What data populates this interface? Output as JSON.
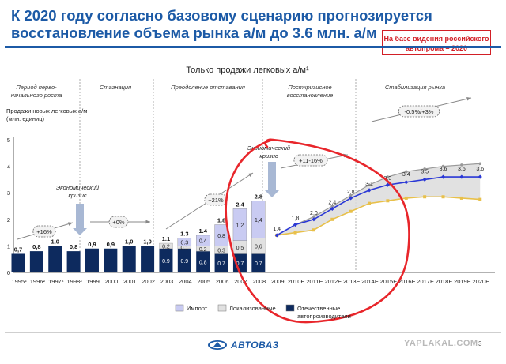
{
  "header": {
    "title_line1": "К 2020 году согласно базовому сценарию прогнозируется",
    "title_line2": "восстановление объема рынка а/м до 3.6 млн. а/м",
    "badge_line1": "На базе  видения российского",
    "badge_line2": "автопрома – 2020"
  },
  "colors": {
    "title_blue": "#1c5aa6",
    "domestic": "#0d2a5e",
    "localized": "#e1e1e1",
    "import": "#c9cbf2",
    "forecast_base": "#2a38d6",
    "forecast_upper": "#999999",
    "forecast_lower": "#e8c04a",
    "annotation_red": "#e8262b"
  },
  "chart_data": {
    "type": "bar",
    "title": "Только продажи легковых а/м¹",
    "ylabel_line1": "Продажи новых легковых а/м",
    "ylabel_line2": "(млн. единиц)",
    "ylim": [
      0,
      5
    ],
    "yticks": [
      "0",
      "1",
      "2",
      "3",
      "4",
      "5"
    ],
    "categories": [
      "1995²",
      "1996²",
      "1997²",
      "1998²",
      "1999",
      "2000",
      "2001",
      "2002",
      "2003",
      "2004",
      "2005",
      "2006",
      "2007",
      "2008",
      "2009",
      "2010E",
      "2011E",
      "2012E",
      "2013E",
      "2014E",
      "2015E",
      "2016E",
      "2017E",
      "2018E",
      "2019E",
      "2020E"
    ],
    "bars": [
      {
        "total": "0,7",
        "domestic": 0.7
      },
      {
        "total": "0,8",
        "domestic": 0.8
      },
      {
        "total": "1,0",
        "domestic": 1.0
      },
      {
        "total": "0,8",
        "domestic": 0.8
      },
      {
        "total": "0,9",
        "domestic": 0.9
      },
      {
        "total": "0,9",
        "domestic": 0.9
      },
      {
        "total": "1,0",
        "domestic": 1.0
      },
      {
        "total": "1,0",
        "domestic": 1.0
      },
      {
        "total": "1.1",
        "domestic": 0.9,
        "localized": 0.2,
        "d_label": "0.9",
        "l_label": "0.2"
      },
      {
        "total": "1.3",
        "domestic": 0.9,
        "localized": 0.1,
        "import": 0.3,
        "d_label": "0.9",
        "l_label": "0.1",
        "i_label": "0.3"
      },
      {
        "total": "1.4",
        "domestic": 0.8,
        "localized": 0.2,
        "import": 0.4,
        "d_label": "0.8",
        "l_label": "0.2",
        "i_label": "0.4"
      },
      {
        "total": "1.8",
        "domestic": 0.7,
        "localized": 0.3,
        "import": 0.8,
        "d_label": "0.7",
        "l_label": "0.3",
        "i_label": "0.8"
      },
      {
        "total": "2.4",
        "domestic": 0.7,
        "localized": 0.5,
        "import": 1.2,
        "d_label": "0.7",
        "l_label": "0,5",
        "i_label": "1,2"
      },
      {
        "total": "2.8",
        "domestic": 0.7,
        "localized": 0.6,
        "import": 1.4,
        "d_label": "0.7",
        "l_label": "0,6",
        "i_label": "1,4"
      }
    ],
    "forecast": {
      "x": [
        "2009",
        "2010E",
        "2011E",
        "2012E",
        "2013E",
        "2014E",
        "2015E",
        "2016E",
        "2017E",
        "2018E",
        "2019E",
        "2020E"
      ],
      "base": [
        1.4,
        1.8,
        2.0,
        2.4,
        2.8,
        3.1,
        3.3,
        3.4,
        3.5,
        3.6,
        3.6,
        3.6
      ],
      "upper": [
        1.4,
        1.8,
        2.1,
        2.5,
        2.9,
        3.3,
        3.6,
        3.8,
        3.9,
        4.0,
        4.05,
        4.1
      ],
      "lower": [
        1.4,
        1.5,
        1.6,
        2.0,
        2.3,
        2.6,
        2.7,
        2.8,
        2.85,
        2.85,
        2.8,
        2.75
      ],
      "labels": [
        "1,4",
        "1,8",
        "2,0",
        "2,4",
        "2,8",
        "3,1",
        "3,3",
        "3,4",
        "3,5",
        "3,6",
        "3,6",
        "3,6"
      ]
    },
    "periods": [
      "Период перво-|начального роста",
      "Стагнация",
      "Преодоление отставания",
      "Посткризисное|восстановление",
      "Стабилизация рынка"
    ],
    "growth_labels": [
      "+16%",
      "+0%",
      "+21%",
      "+11-16%",
      "-0.5%/+3%"
    ],
    "crisis_labels": [
      "Экономический|кризис",
      "Экономический|кризис"
    ],
    "legend": [
      "Импорт",
      "Локализованные",
      "Отечественные|автопроизводители"
    ]
  },
  "footer": {
    "brand": "АВТОВАЗ",
    "watermark": "YAPLAKAL.COM",
    "page": "3"
  }
}
